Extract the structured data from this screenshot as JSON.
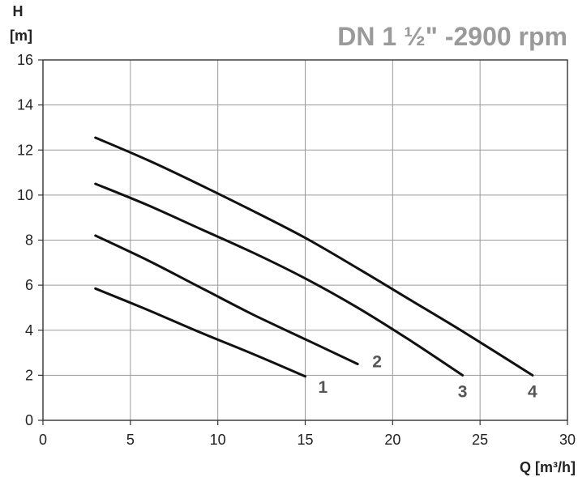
{
  "chart_data": {
    "type": "line",
    "title": "DN 1 ½\" -2900 rpm",
    "ylabel_line1": "H",
    "ylabel_line2": "[m]",
    "xlabel": "Q [m³/h]",
    "xlim": [
      0,
      30
    ],
    "ylim": [
      0,
      16
    ],
    "xticks": [
      0,
      5,
      10,
      15,
      20,
      25,
      30
    ],
    "yticks": [
      0,
      2,
      4,
      6,
      8,
      10,
      12,
      14,
      16
    ],
    "grid": true,
    "series": [
      {
        "name": "1",
        "x": [
          3,
          6,
          9,
          12,
          15
        ],
        "y": [
          5.85,
          4.9,
          3.9,
          2.95,
          1.95
        ]
      },
      {
        "name": "2",
        "x": [
          3,
          6,
          9,
          12,
          15,
          18
        ],
        "y": [
          8.2,
          7.1,
          5.9,
          4.7,
          3.6,
          2.5
        ]
      },
      {
        "name": "3",
        "x": [
          3,
          6,
          9,
          12,
          15,
          18,
          21,
          24
        ],
        "y": [
          10.5,
          9.55,
          8.5,
          7.45,
          6.3,
          5.0,
          3.55,
          2.0
        ]
      },
      {
        "name": "4",
        "x": [
          3,
          6,
          9,
          12,
          15,
          18,
          21,
          24,
          28
        ],
        "y": [
          12.55,
          11.55,
          10.45,
          9.3,
          8.1,
          6.75,
          5.35,
          3.95,
          2.0
        ]
      }
    ]
  }
}
